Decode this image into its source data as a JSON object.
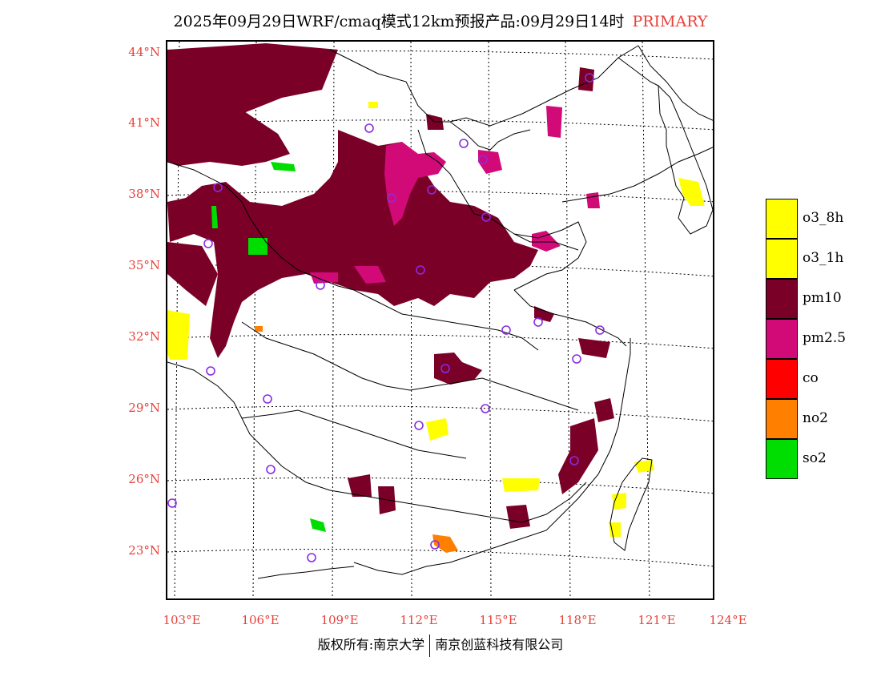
{
  "title": {
    "text": "2025年09月29日WRF/cmaq模式12km预报产品:09月29日14时",
    "tag": "PRIMARY"
  },
  "axes": {
    "lat_labels": [
      "44°N",
      "41°N",
      "38°N",
      "35°N",
      "32°N",
      "29°N",
      "26°N",
      "23°N"
    ],
    "lon_labels": [
      "103°E",
      "106°E",
      "109°E",
      "112°E",
      "115°E",
      "118°E",
      "121°E",
      "124°E"
    ]
  },
  "legend": [
    {
      "label": "o3_8h",
      "color": "#ffff00"
    },
    {
      "label": "o3_1h",
      "color": "#ffff00"
    },
    {
      "label": "pm10",
      "color": "#7a0028"
    },
    {
      "label": "pm2.5",
      "color": "#d10a78"
    },
    {
      "label": "co",
      "color": "#ff0000"
    },
    {
      "label": "no2",
      "color": "#ff7f00"
    },
    {
      "label": "so2",
      "color": "#00dd00"
    }
  ],
  "footer": {
    "left": "版权所有:南京大学",
    "right": "南京创蓝科技有限公司"
  },
  "colors": {
    "axis_label": "#e8413a",
    "station_marker": "#8a2be2"
  }
}
